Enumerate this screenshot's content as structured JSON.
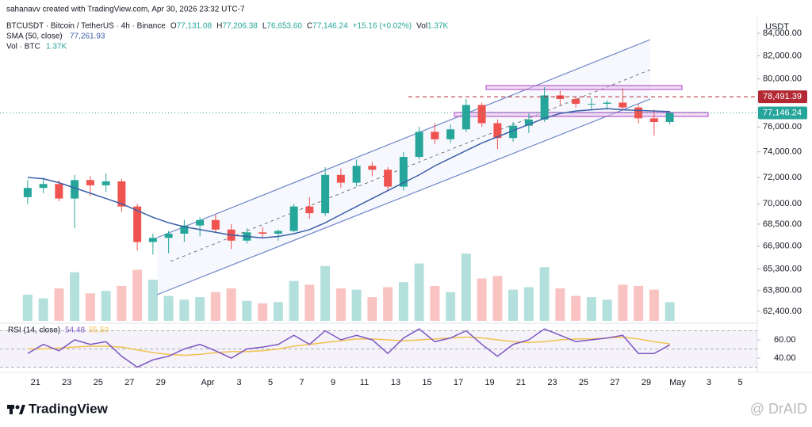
{
  "chart_data": {
    "type": "candlestick",
    "credit": "sahanavv created with TradingView.com, Apr 30, 2026 23:32 UTC-7",
    "title": "BTCUSDT · Bitcoin / TetherUS · 4h · Binance",
    "ohlc_legend": [
      {
        "key": "O",
        "label": "77,131.08"
      },
      {
        "key": "H",
        "label": "77,206.38"
      },
      {
        "key": "L",
        "label": "76,653.60"
      },
      {
        "key": "C",
        "label": "77,146.24"
      },
      {
        "key": "",
        "label": "+15.16 (+0.02%)"
      },
      {
        "key": "Vol",
        "label": "1.37K"
      }
    ],
    "sma_label": "SMA (50, close)",
    "sma_value_label": "77,261.93",
    "vol_label": "Vol · BTC",
    "vol_value_label": "1.37K",
    "rsi_label": "RSI (14, close)",
    "rsi_value_labels": [
      "54.48",
      "55.50"
    ],
    "currency": "USDT",
    "logo": "TradingView",
    "watermark": "@ DrAID",
    "up_color": "#26a69a",
    "down_color": "#ef5350",
    "sma_color": "#3b5fa8",
    "rsi_color": "#7e57c2",
    "rsi_ma_color": "#f2c14e",
    "log_scale": true,
    "categories": [
      null,
      "21",
      null,
      "23",
      null,
      "25",
      null,
      "27",
      null,
      "29",
      null,
      null,
      "Apr",
      null,
      "3",
      null,
      "5",
      null,
      "7",
      null,
      "9",
      null,
      "11",
      null,
      "13",
      null,
      "15",
      null,
      "17",
      null,
      "19",
      null,
      "21",
      null,
      "23",
      null,
      "25",
      null,
      "27",
      null,
      "29",
      null,
      "May",
      null,
      "3",
      null,
      "5"
    ],
    "open": [
      70500,
      71200,
      71500,
      70400,
      71800,
      71400,
      71700,
      69800,
      67200,
      67500,
      67800,
      68400,
      68800,
      68100,
      67300,
      67900,
      67800,
      68000,
      69800,
      69300,
      72200,
      71600,
      72900,
      72600,
      71300,
      73600,
      75600,
      75000,
      75800,
      77800,
      76300,
      75100,
      76100,
      76600,
      78600,
      78300,
      77900,
      77900,
      78000,
      77600,
      76700,
      76400,
      null,
      null,
      null,
      null,
      null
    ],
    "high": [
      71800,
      72000,
      71800,
      72200,
      72100,
      72300,
      71900,
      70000,
      67800,
      68000,
      68800,
      69000,
      69200,
      68500,
      68200,
      68300,
      68100,
      70000,
      70500,
      72800,
      72700,
      73400,
      73200,
      72800,
      74000,
      76000,
      76300,
      76200,
      78300,
      78000,
      76600,
      76400,
      77100,
      79300,
      79000,
      78500,
      78400,
      78200,
      79200,
      77900,
      77400,
      77300,
      null,
      null,
      null,
      null,
      null
    ],
    "low": [
      70000,
      70800,
      70200,
      68200,
      70600,
      70900,
      69400,
      66600,
      66300,
      66400,
      67200,
      67600,
      67900,
      66700,
      67100,
      67500,
      67300,
      67900,
      68900,
      69100,
      71200,
      71300,
      72100,
      71000,
      71000,
      73400,
      74600,
      74700,
      75600,
      76000,
      74200,
      74800,
      75500,
      76400,
      77800,
      77600,
      77400,
      77400,
      77400,
      76300,
      75300,
      76200,
      null,
      null,
      null,
      null,
      null
    ],
    "close": [
      71200,
      71500,
      70400,
      71800,
      71400,
      71700,
      69800,
      67200,
      67500,
      67800,
      68400,
      68800,
      68100,
      67300,
      67900,
      67800,
      68000,
      69800,
      69300,
      72200,
      71600,
      72900,
      72600,
      71300,
      73600,
      75600,
      75000,
      75800,
      77800,
      76300,
      75100,
      76100,
      76600,
      78600,
      78300,
      77900,
      77900,
      78000,
      77600,
      76700,
      76400,
      77146.24,
      null,
      null,
      null,
      null,
      null
    ],
    "volume": [
      2100,
      1800,
      2600,
      3900,
      2200,
      2400,
      2800,
      4100,
      3300,
      2000,
      1700,
      1900,
      2300,
      2600,
      1600,
      1400,
      1500,
      3200,
      2900,
      4400,
      2600,
      2500,
      1900,
      2700,
      3100,
      4600,
      2800,
      2300,
      5400,
      3400,
      3600,
      2500,
      2700,
      4300,
      2600,
      2000,
      1900,
      1700,
      2900,
      2800,
      2500,
      1500,
      null,
      null,
      null,
      null,
      null
    ],
    "sma": [
      72000,
      71900,
      71600,
      71200,
      70800,
      70400,
      70000,
      69500,
      69000,
      68600,
      68300,
      68100,
      67900,
      67700,
      67600,
      67500,
      67600,
      67800,
      68100,
      68600,
      69200,
      69800,
      70400,
      71000,
      71600,
      72200,
      72900,
      73500,
      74100,
      74700,
      75200,
      75700,
      76200,
      76700,
      77100,
      77300,
      77400,
      77500,
      77400,
      77350,
      77300,
      77261.93,
      null,
      null,
      null,
      null,
      null
    ],
    "rsi": [
      45,
      55,
      48,
      60,
      55,
      58,
      42,
      30,
      38,
      42,
      50,
      55,
      48,
      40,
      50,
      52,
      55,
      65,
      55,
      70,
      60,
      65,
      60,
      45,
      62,
      72,
      58,
      62,
      70,
      55,
      42,
      55,
      60,
      72,
      65,
      58,
      60,
      62,
      65,
      45,
      45,
      54.48,
      null,
      null,
      null,
      null,
      null
    ],
    "rsi_ma": [
      50,
      50,
      51,
      52,
      53,
      53,
      52,
      49,
      46,
      44,
      43,
      44,
      46,
      47,
      47,
      48,
      50,
      53,
      55,
      57,
      59,
      61,
      61,
      60,
      59,
      60,
      61,
      62,
      63,
      62,
      60,
      58,
      57,
      58,
      60,
      61,
      61,
      62,
      63,
      61,
      58,
      55.5,
      null,
      null,
      null,
      null,
      null
    ],
    "ylim": [
      61770,
      85580
    ],
    "yticks": [
      {
        "value": 62400,
        "label": "62,400.00"
      },
      {
        "value": 63800,
        "label": "63,800.00"
      },
      {
        "value": 65300,
        "label": "65,300.00"
      },
      {
        "value": 66900,
        "label": "66,900.00"
      },
      {
        "value": 68500,
        "label": "68,500.00"
      },
      {
        "value": 70000,
        "label": "70,000.00"
      },
      {
        "value": 72000,
        "label": "72,000.00"
      },
      {
        "value": 74000,
        "label": "74,000.00"
      },
      {
        "value": 76000,
        "label": "76,000.00"
      },
      {
        "value": 80000,
        "label": "80,000.00"
      },
      {
        "value": 82000,
        "label": "82,000.00"
      },
      {
        "value": 84000,
        "label": "84,000.00"
      }
    ],
    "price_labels": [
      {
        "value": 78491.39,
        "label": "78,491.39",
        "color": "#b22833"
      },
      {
        "value": 77146.24,
        "label": "77,146.24",
        "color": "#26a69a"
      }
    ],
    "rsi_ylim": [
      27.8,
      73.9
    ],
    "rsi_yticks": [
      {
        "value": 60,
        "label": "60.00"
      },
      {
        "value": 40,
        "label": "40.00"
      }
    ],
    "rsi_levels": [
      70,
      50,
      30
    ]
  }
}
